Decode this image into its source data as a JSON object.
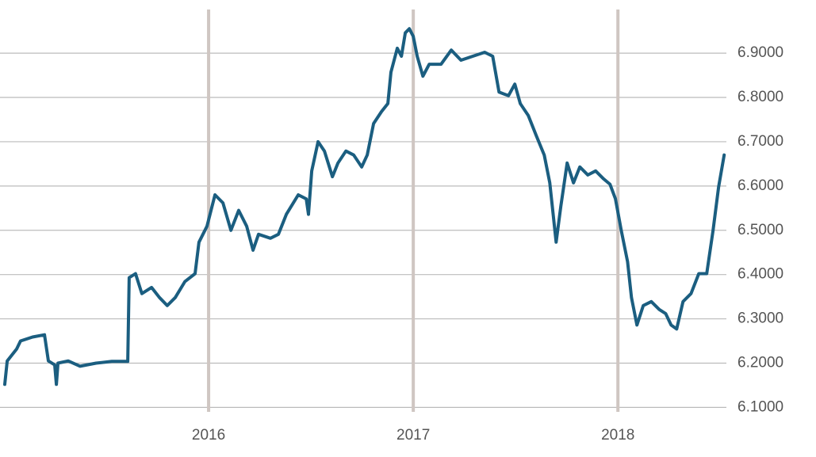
{
  "chart_data": {
    "type": "line",
    "x": [
      2015.004,
      2015.016,
      2015.062,
      2015.081,
      2015.14,
      2015.198,
      2015.217,
      2015.248,
      2015.256,
      2015.264,
      2015.314,
      2015.372,
      2015.45,
      2015.527,
      2015.605,
      2015.612,
      2015.643,
      2015.674,
      2015.721,
      2015.76,
      2015.798,
      2015.837,
      2015.884,
      2015.934,
      2015.953,
      2015.992,
      2016.031,
      2016.07,
      2016.109,
      2016.147,
      2016.186,
      2016.217,
      2016.244,
      2016.302,
      2016.341,
      2016.38,
      2016.438,
      2016.477,
      2016.488,
      2016.504,
      2016.535,
      2016.566,
      2016.605,
      2016.632,
      2016.671,
      2016.709,
      2016.748,
      2016.775,
      2016.806,
      2016.845,
      2016.876,
      2016.891,
      2016.922,
      2016.942,
      2016.961,
      2016.981,
      2017.0,
      2017.019,
      2017.047,
      2017.078,
      2017.136,
      2017.186,
      2017.233,
      2017.291,
      2017.349,
      2017.388,
      2017.419,
      2017.465,
      2017.496,
      2017.523,
      2017.562,
      2017.601,
      2017.64,
      2017.667,
      2017.698,
      2017.721,
      2017.752,
      2017.783,
      2017.814,
      2017.853,
      2017.891,
      2017.93,
      2017.961,
      2017.988,
      2018.016,
      2018.047,
      2018.066,
      2018.093,
      2018.124,
      2018.163,
      2018.202,
      2018.233,
      2018.26,
      2018.287,
      2018.318,
      2018.357,
      2018.395,
      2018.434,
      2018.465,
      2018.492,
      2018.519
    ],
    "series": [
      {
        "color": "#1b5e80",
        "values": [
          6.152,
          6.205,
          6.232,
          6.25,
          6.259,
          6.264,
          6.205,
          6.196,
          6.152,
          6.2,
          6.205,
          6.193,
          6.2,
          6.204,
          6.204,
          6.393,
          6.402,
          6.357,
          6.371,
          6.348,
          6.33,
          6.348,
          6.384,
          6.402,
          6.473,
          6.509,
          6.58,
          6.562,
          6.5,
          6.545,
          6.509,
          6.455,
          6.491,
          6.482,
          6.491,
          6.536,
          6.58,
          6.571,
          6.536,
          6.634,
          6.7,
          6.679,
          6.621,
          6.652,
          6.679,
          6.67,
          6.643,
          6.67,
          6.741,
          6.768,
          6.786,
          6.857,
          6.911,
          6.893,
          6.946,
          6.955,
          6.938,
          6.893,
          6.848,
          6.875,
          6.875,
          6.907,
          6.884,
          6.893,
          6.902,
          6.893,
          6.812,
          6.804,
          6.83,
          6.786,
          6.759,
          6.714,
          6.67,
          6.607,
          6.473,
          6.554,
          6.652,
          6.607,
          6.643,
          6.625,
          6.634,
          6.616,
          6.604,
          6.571,
          6.5,
          6.429,
          6.348,
          6.286,
          6.33,
          6.339,
          6.321,
          6.312,
          6.286,
          6.277,
          6.339,
          6.357,
          6.402,
          6.402,
          6.5,
          6.598,
          6.67
        ]
      }
    ],
    "xlim": [
      2015.0,
      2018.53
    ],
    "xticks": [
      2016,
      2017,
      2018
    ],
    "ylim": [
      6.09,
      7.02
    ],
    "yticks": [
      {
        "value": 6.1,
        "label": "6.1000"
      },
      {
        "value": 6.2,
        "label": "6.2000"
      },
      {
        "value": 6.3,
        "label": "6.3000"
      },
      {
        "value": 6.4,
        "label": "6.4000"
      },
      {
        "value": 6.5,
        "label": "6.5000"
      },
      {
        "value": 6.6,
        "label": "6.6000"
      },
      {
        "value": 6.7,
        "label": "6.7000"
      },
      {
        "value": 6.8,
        "label": "6.8000"
      },
      {
        "value": 6.9,
        "label": "6.9000"
      }
    ],
    "grid": true
  }
}
